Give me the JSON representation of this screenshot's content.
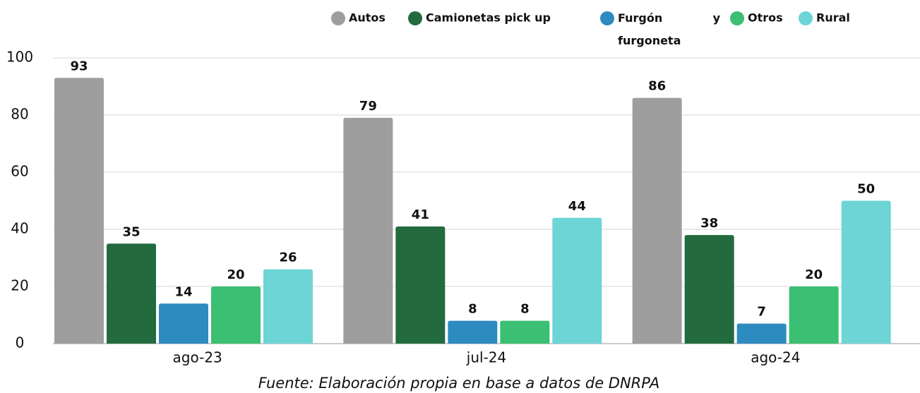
{
  "chart_data": {
    "type": "bar",
    "caption": "Fuente: Elaboración propia en base a datos de DNRPA",
    "categories": [
      "ago-23",
      "jul-24",
      "ago-24"
    ],
    "series": [
      {
        "name": "Autos",
        "color": "#9e9e9e",
        "values": [
          93,
          79,
          86
        ]
      },
      {
        "name": "Camionetas pick up",
        "color": "#236b3e",
        "values": [
          35,
          41,
          38
        ]
      },
      {
        "name": "Furgón y furgoneta",
        "color": "#2e8bc0",
        "values": [
          14,
          8,
          7
        ]
      },
      {
        "name": "Otros",
        "color": "#3bbf72",
        "values": [
          20,
          8,
          20
        ]
      },
      {
        "name": "Rural",
        "color": "#6dd5d5",
        "values": [
          26,
          44,
          50
        ]
      }
    ],
    "ylim": [
      0,
      100
    ],
    "yticks": [
      0,
      20,
      40,
      60,
      80,
      100
    ],
    "grid": true,
    "legend": "top"
  }
}
